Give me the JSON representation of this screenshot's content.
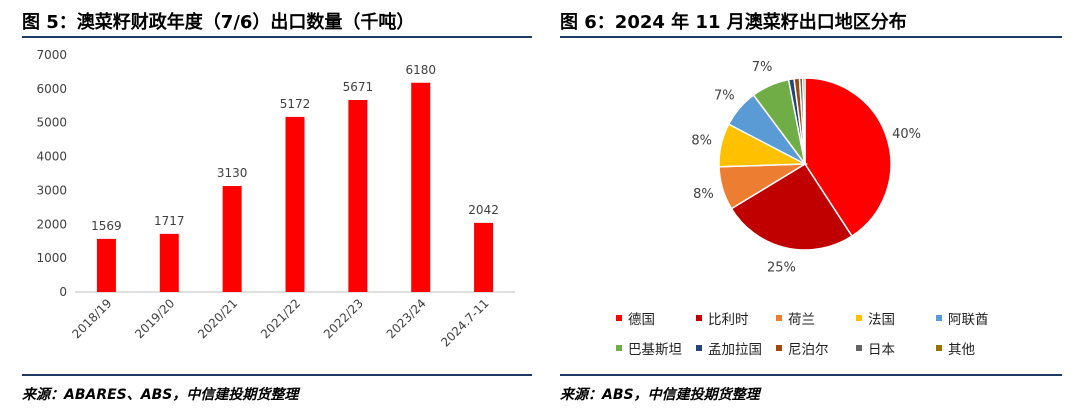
{
  "left_title": "图 5：澳菜籽财政年度（7/6）出口数量（千吨）",
  "right_title": "图 6：2024 年 11 月澳菜籽出口地区分布",
  "left_source": "来源：ABARES、ABS，中信建投期货整理",
  "right_source": "来源：ABS，中信建投期货整理",
  "colors": {
    "rule": "#1f3b63",
    "bar": "#ff0000"
  },
  "chart_data": [
    {
      "type": "bar",
      "categories": [
        "2018/19",
        "2019/20",
        "2020/21",
        "2021/22",
        "2022/23",
        "2023/24",
        "2024.7-11"
      ],
      "values": [
        1569,
        1717,
        3130,
        5172,
        5671,
        6180,
        2042
      ],
      "value_labels": [
        "1569",
        "1717",
        "3130",
        "5172",
        "5671",
        "6180",
        "2042"
      ],
      "yticks": [
        "0",
        "1000",
        "2000",
        "3000",
        "4000",
        "5000",
        "6000",
        "7000"
      ],
      "ylim": [
        0,
        7000
      ],
      "color": "#ff0000"
    },
    {
      "type": "pie",
      "slices": [
        {
          "name": "德国",
          "value": 40,
          "label": "40%",
          "color": "#ff0000"
        },
        {
          "name": "比利时",
          "value": 25,
          "label": "25%",
          "color": "#c00000"
        },
        {
          "name": "荷兰",
          "value": 8,
          "label": "8%",
          "color": "#ed7d31"
        },
        {
          "name": "法国",
          "value": 8,
          "label": "8%",
          "color": "#ffc000"
        },
        {
          "name": "阿联酋",
          "value": 7,
          "label": "7%",
          "color": "#5b9bd5"
        },
        {
          "name": "巴基斯坦",
          "value": 7,
          "label": "7%",
          "color": "#70ad47"
        },
        {
          "name": "孟加拉国",
          "value": 1,
          "label": "",
          "color": "#264478"
        },
        {
          "name": "尼泊尔",
          "value": 1,
          "label": "",
          "color": "#9e480e"
        },
        {
          "name": "日本",
          "value": 0.6,
          "label": "",
          "color": "#636363"
        },
        {
          "name": "其他",
          "value": 0.4,
          "label": "",
          "color": "#997300"
        }
      ]
    }
  ]
}
